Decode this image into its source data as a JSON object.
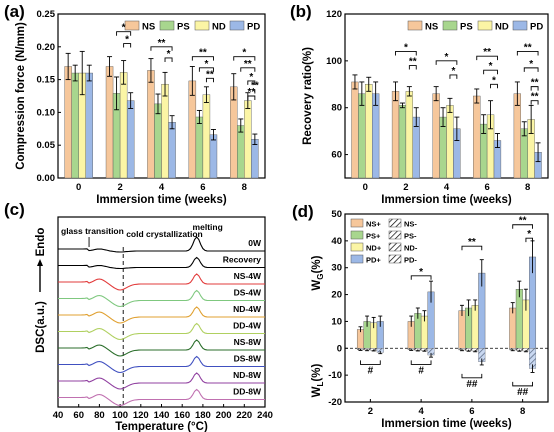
{
  "colors": {
    "NS": "#F6C79B",
    "PS": "#A8D68E",
    "ND": "#FBF5A5",
    "PD": "#9CB8E6",
    "border": "#000000"
  },
  "chart_data": [
    {
      "panel": "(a)",
      "type": "bar",
      "ylabel": "Compression force (N/mm)",
      "xlabel": "Immersion time (weeks)",
      "categories": [
        "0",
        "2",
        "4",
        "6",
        "8"
      ],
      "ylim": [
        0,
        0.25
      ],
      "yticks": [
        "0.00",
        "0.05",
        "0.10",
        "0.15",
        "0.20",
        "0.25"
      ],
      "legend": [
        "NS",
        "PS",
        "ND",
        "PD"
      ],
      "series": [
        {
          "name": "NS",
          "values": [
            0.17,
            0.17,
            0.164,
            0.148,
            0.139
          ],
          "errors": [
            0.02,
            0.015,
            0.018,
            0.022,
            0.02
          ]
        },
        {
          "name": "PS",
          "values": [
            0.16,
            0.129,
            0.113,
            0.093,
            0.08
          ],
          "errors": [
            0.012,
            0.025,
            0.015,
            0.01,
            0.01
          ]
        },
        {
          "name": "ND",
          "values": [
            0.16,
            0.161,
            0.143,
            0.127,
            0.118
          ],
          "errors": [
            0.033,
            0.018,
            0.018,
            0.012,
            0.012
          ]
        },
        {
          "name": "PD",
          "values": [
            0.16,
            0.118,
            0.085,
            0.066,
            0.059
          ],
          "errors": [
            0.012,
            0.012,
            0.01,
            0.008,
            0.008
          ]
        }
      ],
      "significance": [
        "*",
        "*",
        "**",
        "*",
        "**",
        "*",
        "**",
        "*",
        "**",
        "*",
        "**",
        "**"
      ]
    },
    {
      "panel": "(b)",
      "type": "bar",
      "ylabel": "Recovery ratio(%)",
      "xlabel": "Immersion time (weeks)",
      "categories": [
        "0",
        "2",
        "4",
        "6",
        "8"
      ],
      "ylim": [
        50,
        120
      ],
      "yticks": [
        "60",
        "80",
        "100",
        "120"
      ],
      "legend": [
        "NS",
        "PS",
        "ND",
        "PD"
      ],
      "series": [
        {
          "name": "NS",
          "values": [
            91,
            87,
            86,
            85,
            86
          ],
          "errors": [
            3,
            4,
            3,
            3,
            5
          ]
        },
        {
          "name": "PS",
          "values": [
            86,
            81,
            76,
            73,
            71
          ],
          "errors": [
            5,
            1,
            4,
            4,
            3
          ]
        },
        {
          "name": "ND",
          "values": [
            90,
            87,
            81,
            77,
            75
          ],
          "errors": [
            3,
            2,
            3,
            6,
            6
          ]
        },
        {
          "name": "PD",
          "values": [
            86,
            76,
            71,
            66,
            61
          ],
          "errors": [
            5,
            4,
            5,
            3,
            4
          ]
        }
      ],
      "significance": [
        "*",
        "**",
        "*",
        "*",
        "**",
        "*",
        "*",
        "**",
        "*",
        "**",
        "**"
      ]
    },
    {
      "panel": "(c)",
      "type": "line",
      "ylabel": "DSC(a.u.)",
      "ylabel_arrow": "Endo",
      "xlabel": "Temperature (°C)",
      "xlim": [
        40,
        240
      ],
      "xticks": [
        "40",
        "60",
        "80",
        "100",
        "120",
        "140",
        "160",
        "180",
        "200",
        "220",
        "240"
      ],
      "annotations": [
        "glass transition",
        "cold crystallization",
        "melting"
      ],
      "series": [
        {
          "name": "0W",
          "color": "#000000"
        },
        {
          "name": "Recovery",
          "color": "#000000"
        },
        {
          "name": "NS-4W",
          "color": "#E23B3B"
        },
        {
          "name": "DS-4W",
          "color": "#7FC87F"
        },
        {
          "name": "ND-4W",
          "color": "#E0A030"
        },
        {
          "name": "DD-4W",
          "color": "#B0D060"
        },
        {
          "name": "NS-8W",
          "color": "#2B6E2B"
        },
        {
          "name": "DS-8W",
          "color": "#4050C0"
        },
        {
          "name": "ND-8W",
          "color": "#9040A0"
        },
        {
          "name": "DD-8W",
          "color": "#C070B0"
        }
      ]
    },
    {
      "panel": "(d)",
      "type": "bar",
      "ylabel_top": "W",
      "ylabel_top_sub": "G",
      "ylabel_top_unit": "(%)",
      "ylabel_bottom": "W",
      "ylabel_bottom_sub": "L",
      "ylabel_bottom_unit": "(%)",
      "xlabel": "Immersion time (weeks)",
      "categories": [
        "2",
        "4",
        "6",
        "8"
      ],
      "ylim": [
        -20,
        50
      ],
      "yticks": [
        "-20",
        "-10",
        "0",
        "10",
        "20",
        "30",
        "40",
        "50"
      ],
      "legend": [
        "NS+",
        "NS-",
        "PS+",
        "PS-",
        "ND+",
        "ND-",
        "PD+",
        "PD-"
      ],
      "series": [
        {
          "name": "NS+",
          "values": [
            7,
            10,
            14,
            15
          ],
          "errors": [
            1,
            2,
            2,
            2
          ]
        },
        {
          "name": "PS+",
          "values": [
            10,
            13,
            15,
            22
          ],
          "errors": [
            2,
            2,
            3,
            3
          ]
        },
        {
          "name": "ND+",
          "values": [
            9.5,
            12,
            16,
            18
          ],
          "errors": [
            2,
            2,
            2,
            4
          ]
        },
        {
          "name": "PD+",
          "values": [
            10,
            21,
            28,
            34
          ],
          "errors": [
            2,
            4,
            5,
            6
          ]
        },
        {
          "name": "NS-",
          "values": [
            -0.5,
            -0.5,
            -0.6,
            -0.6
          ],
          "errors": [
            0.3,
            0.3,
            0.3,
            0.3
          ]
        },
        {
          "name": "PS-",
          "values": [
            -0.6,
            -0.7,
            -0.8,
            -0.8
          ],
          "errors": [
            0.3,
            0.3,
            0.3,
            0.3
          ]
        },
        {
          "name": "ND-",
          "values": [
            -0.7,
            -0.8,
            -1.0,
            -1.0
          ],
          "errors": [
            0.3,
            0.3,
            0.3,
            0.3
          ]
        },
        {
          "name": "PD-",
          "values": [
            -1.5,
            -2.5,
            -5.0,
            -7.5
          ],
          "errors": [
            0.5,
            0.8,
            1.2,
            1.5
          ]
        }
      ],
      "significance": [
        "*",
        "**",
        "**",
        "*",
        "#",
        "#",
        "##",
        "##"
      ]
    }
  ]
}
